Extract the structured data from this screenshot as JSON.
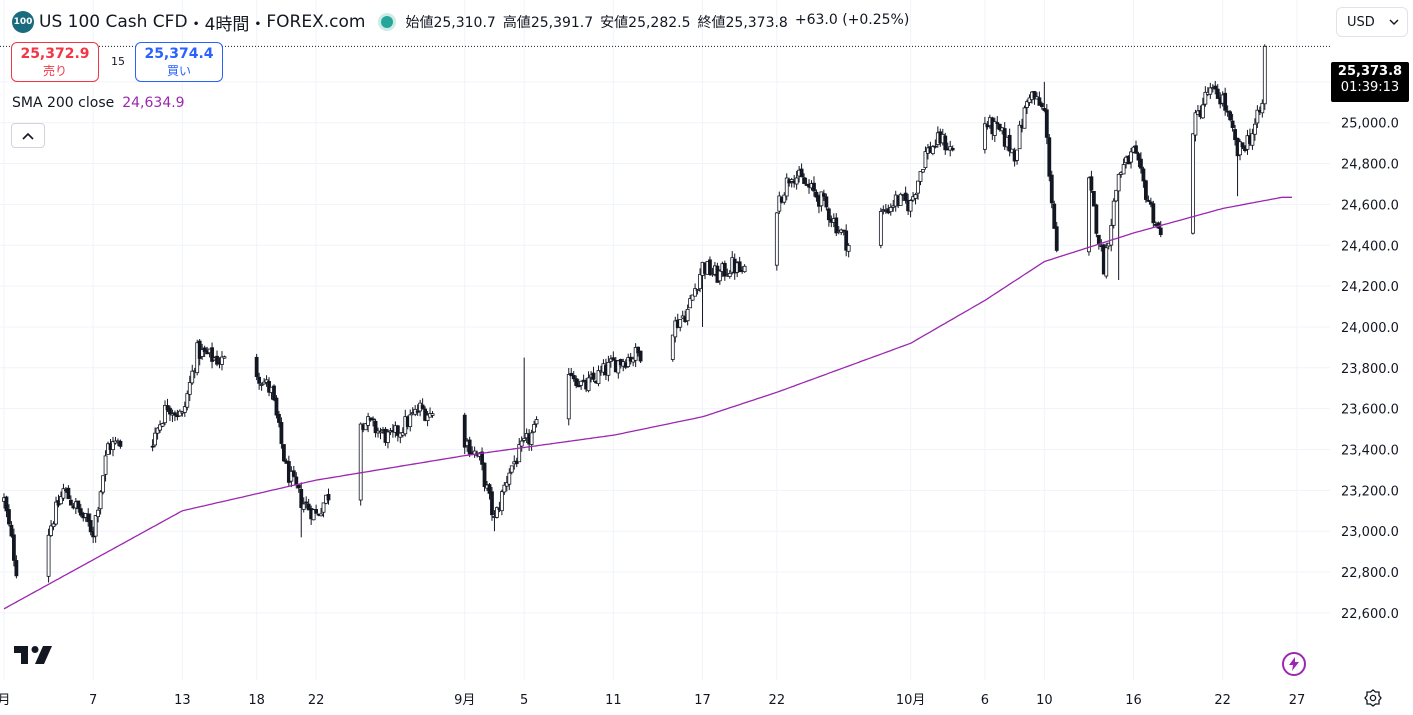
{
  "header": {
    "logo_text": "100",
    "symbol": "US 100 Cash CFD",
    "interval": "4時間",
    "exchange": "FOREX.com",
    "sep": "・",
    "ohlc": {
      "open_label": "始値",
      "open": "25,310.7",
      "high_label": "高値",
      "high": "25,391.7",
      "low_label": "安値",
      "low": "25,282.5",
      "close_label": "終値",
      "close": "25,373.8",
      "change": "+63.0 (+0.25%)"
    }
  },
  "trade": {
    "sell_price": "25,372.9",
    "sell_label": "売り",
    "spread": "15",
    "buy_price": "25,374.4",
    "buy_label": "買い"
  },
  "indicator": {
    "name": "SMA 200 close",
    "value": "24,634.9"
  },
  "currency": {
    "selected": "USD"
  },
  "price_tag": {
    "price": "25,373.8",
    "countdown": "01:39:13"
  },
  "colors": {
    "sma": "#9c27b0",
    "candle": "#131722",
    "grid": "#f0f3fa",
    "sell": "#f23645",
    "buy": "#2962ff"
  },
  "icons": {
    "collapse": "chevron-up-icon",
    "currency": "chevron-down-icon",
    "brand": "tradingview-logo",
    "flash": "lightning-icon",
    "settings": "gear-icon"
  },
  "chart_data": {
    "type": "candlestick",
    "ylim": [
      22500,
      25500
    ],
    "y_ticks": [
      "25,200.0",
      "25,000.0",
      "24,800.0",
      "24,600.0",
      "24,400.0",
      "24,200.0",
      "24,000.0",
      "23,800.0",
      "23,600.0",
      "23,400.0",
      "23,200.0",
      "23,000.0",
      "22,800.0",
      "22,600.0"
    ],
    "y_tick_values": [
      25200,
      25000,
      24800,
      24600,
      24400,
      24200,
      24000,
      23800,
      23600,
      23400,
      23200,
      23000,
      22800,
      22600
    ],
    "x_ticks": [
      "月",
      "7",
      "13",
      "18",
      "22",
      "9月",
      "5",
      "11",
      "17",
      "22",
      "10月",
      "6",
      "10",
      "16",
      "22",
      "27"
    ],
    "x_tick_dates": [
      "2025-08-01",
      "2025-08-07",
      "2025-08-13",
      "2025-08-18",
      "2025-08-22",
      "2025-09-01",
      "2025-09-05",
      "2025-09-11",
      "2025-09-17",
      "2025-09-22",
      "2025-10-01",
      "2025-10-06",
      "2025-10-10",
      "2025-10-16",
      "2025-10-22",
      "2025-10-27"
    ],
    "anchors_close": [
      [
        "2025-08-01",
        23150
      ],
      [
        "2025-08-02",
        22750
      ],
      [
        "2025-08-04",
        23000
      ],
      [
        "2025-08-05",
        23200
      ],
      [
        "2025-08-06",
        23100
      ],
      [
        "2025-08-07",
        23000
      ],
      [
        "2025-08-08",
        23420
      ],
      [
        "2025-08-11",
        23450
      ],
      [
        "2025-08-12",
        23620
      ],
      [
        "2025-08-13",
        23560
      ],
      [
        "2025-08-14",
        23880
      ],
      [
        "2025-08-15",
        23850
      ],
      [
        "2025-08-18",
        23780
      ],
      [
        "2025-08-19",
        23680
      ],
      [
        "2025-08-20",
        23300
      ],
      [
        "2025-08-21",
        23150
      ],
      [
        "2025-08-22",
        23080
      ],
      [
        "2025-08-23",
        23200
      ],
      [
        "2025-08-25",
        23550
      ],
      [
        "2025-08-27",
        23450
      ],
      [
        "2025-08-29",
        23600
      ],
      [
        "2025-08-30",
        23560
      ],
      [
        "2025-08-31",
        23680
      ],
      [
        "2025-09-01",
        23450
      ],
      [
        "2025-09-02",
        23350
      ],
      [
        "2025-09-03",
        23050
      ],
      [
        "2025-09-04",
        23300
      ],
      [
        "2025-09-05",
        23420
      ],
      [
        "2025-09-07",
        23620
      ],
      [
        "2025-09-08",
        23800
      ],
      [
        "2025-09-09",
        23700
      ],
      [
        "2025-09-11",
        23820
      ],
      [
        "2025-09-13",
        23880
      ],
      [
        "2025-09-15",
        24000
      ],
      [
        "2025-09-16",
        24080
      ],
      [
        "2025-09-17",
        24300
      ],
      [
        "2025-09-18",
        24250
      ],
      [
        "2025-09-19",
        24300
      ],
      [
        "2025-09-20",
        24250
      ],
      [
        "2025-09-21",
        24580
      ],
      [
        "2025-09-22",
        24600
      ],
      [
        "2025-09-23",
        24760
      ],
      [
        "2025-09-25",
        24620
      ],
      [
        "2025-09-27",
        24380
      ],
      [
        "2025-09-28",
        24330
      ],
      [
        "2025-09-29",
        24550
      ],
      [
        "2025-09-30",
        24620
      ],
      [
        "2025-10-01",
        24600
      ],
      [
        "2025-10-02",
        24850
      ],
      [
        "2025-10-03",
        24920
      ],
      [
        "2025-10-04",
        24850
      ],
      [
        "2025-10-06",
        25000
      ],
      [
        "2025-10-07",
        24950
      ],
      [
        "2025-10-08",
        24850
      ],
      [
        "2025-10-09",
        25150
      ],
      [
        "2025-10-10",
        25050
      ],
      [
        "2025-10-11",
        24200
      ],
      [
        "2025-10-13",
        24700
      ],
      [
        "2025-10-14",
        24300
      ],
      [
        "2025-10-15",
        24750
      ],
      [
        "2025-10-16",
        24850
      ],
      [
        "2025-10-17",
        24620
      ],
      [
        "2025-10-18",
        24400
      ],
      [
        "2025-10-19",
        24550
      ],
      [
        "2025-10-20",
        24980
      ],
      [
        "2025-10-21",
        25150
      ],
      [
        "2025-10-22",
        25120
      ],
      [
        "2025-10-23",
        24850
      ],
      [
        "2025-10-24",
        24950
      ],
      [
        "2025-10-25",
        25150
      ],
      [
        "2025-10-26",
        25374
      ]
    ],
    "sma200_anchors": [
      [
        "2025-08-01",
        22620
      ],
      [
        "2025-08-13",
        23100
      ],
      [
        "2025-08-22",
        23250
      ],
      [
        "2025-09-01",
        23370
      ],
      [
        "2025-09-11",
        23470
      ],
      [
        "2025-09-17",
        23560
      ],
      [
        "2025-09-22",
        23680
      ],
      [
        "2025-10-01",
        23920
      ],
      [
        "2025-10-06",
        24130
      ],
      [
        "2025-10-10",
        24320
      ],
      [
        "2025-10-16",
        24460
      ],
      [
        "2025-10-22",
        24580
      ],
      [
        "2025-10-26",
        24635
      ]
    ],
    "spikes": [
      [
        "2025-08-02",
        22660,
        "low"
      ],
      [
        "2025-08-21",
        22970,
        "low"
      ],
      [
        "2025-09-03",
        23000,
        "low"
      ],
      [
        "2025-09-05",
        23850,
        "high"
      ],
      [
        "2025-09-17",
        24000,
        "low"
      ],
      [
        "2025-09-28",
        24190,
        "low"
      ],
      [
        "2025-10-10",
        25200,
        "high"
      ],
      [
        "2025-10-11",
        23990,
        "low"
      ],
      [
        "2025-10-15",
        24230,
        "low"
      ],
      [
        "2025-10-18",
        24240,
        "low"
      ],
      [
        "2025-10-23",
        24640,
        "low"
      ],
      [
        "2025-10-26",
        25392,
        "high"
      ]
    ],
    "last_close": 25373.8
  }
}
